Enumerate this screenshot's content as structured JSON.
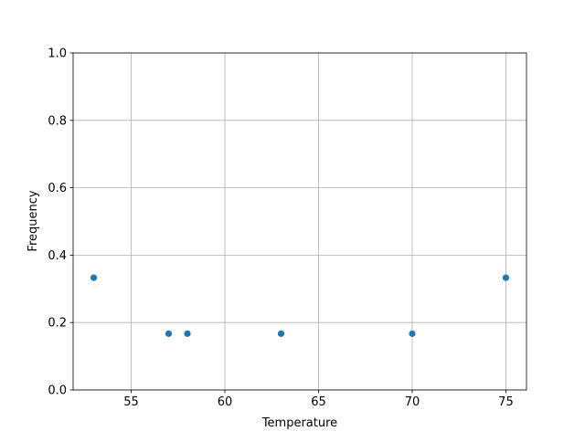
{
  "chart_data": {
    "type": "scatter",
    "title": "",
    "xlabel": "Temperature",
    "ylabel": "Frequency",
    "xlim": [
      51.9,
      76.1
    ],
    "ylim": [
      0,
      1
    ],
    "xticks": [
      55,
      60,
      65,
      70,
      75
    ],
    "yticks": [
      0.0,
      0.2,
      0.4,
      0.6,
      0.8,
      1.0
    ],
    "xtick_labels": [
      "55",
      "60",
      "65",
      "70",
      "75"
    ],
    "ytick_labels": [
      "0.0",
      "0.2",
      "0.4",
      "0.6",
      "0.8",
      "1.0"
    ],
    "grid": true,
    "marker_color": "#1f77b4",
    "points": [
      {
        "x": 53,
        "y": 0.333
      },
      {
        "x": 57,
        "y": 0.167
      },
      {
        "x": 58,
        "y": 0.167
      },
      {
        "x": 63,
        "y": 0.167
      },
      {
        "x": 70,
        "y": 0.167
      },
      {
        "x": 75,
        "y": 0.333
      }
    ]
  }
}
